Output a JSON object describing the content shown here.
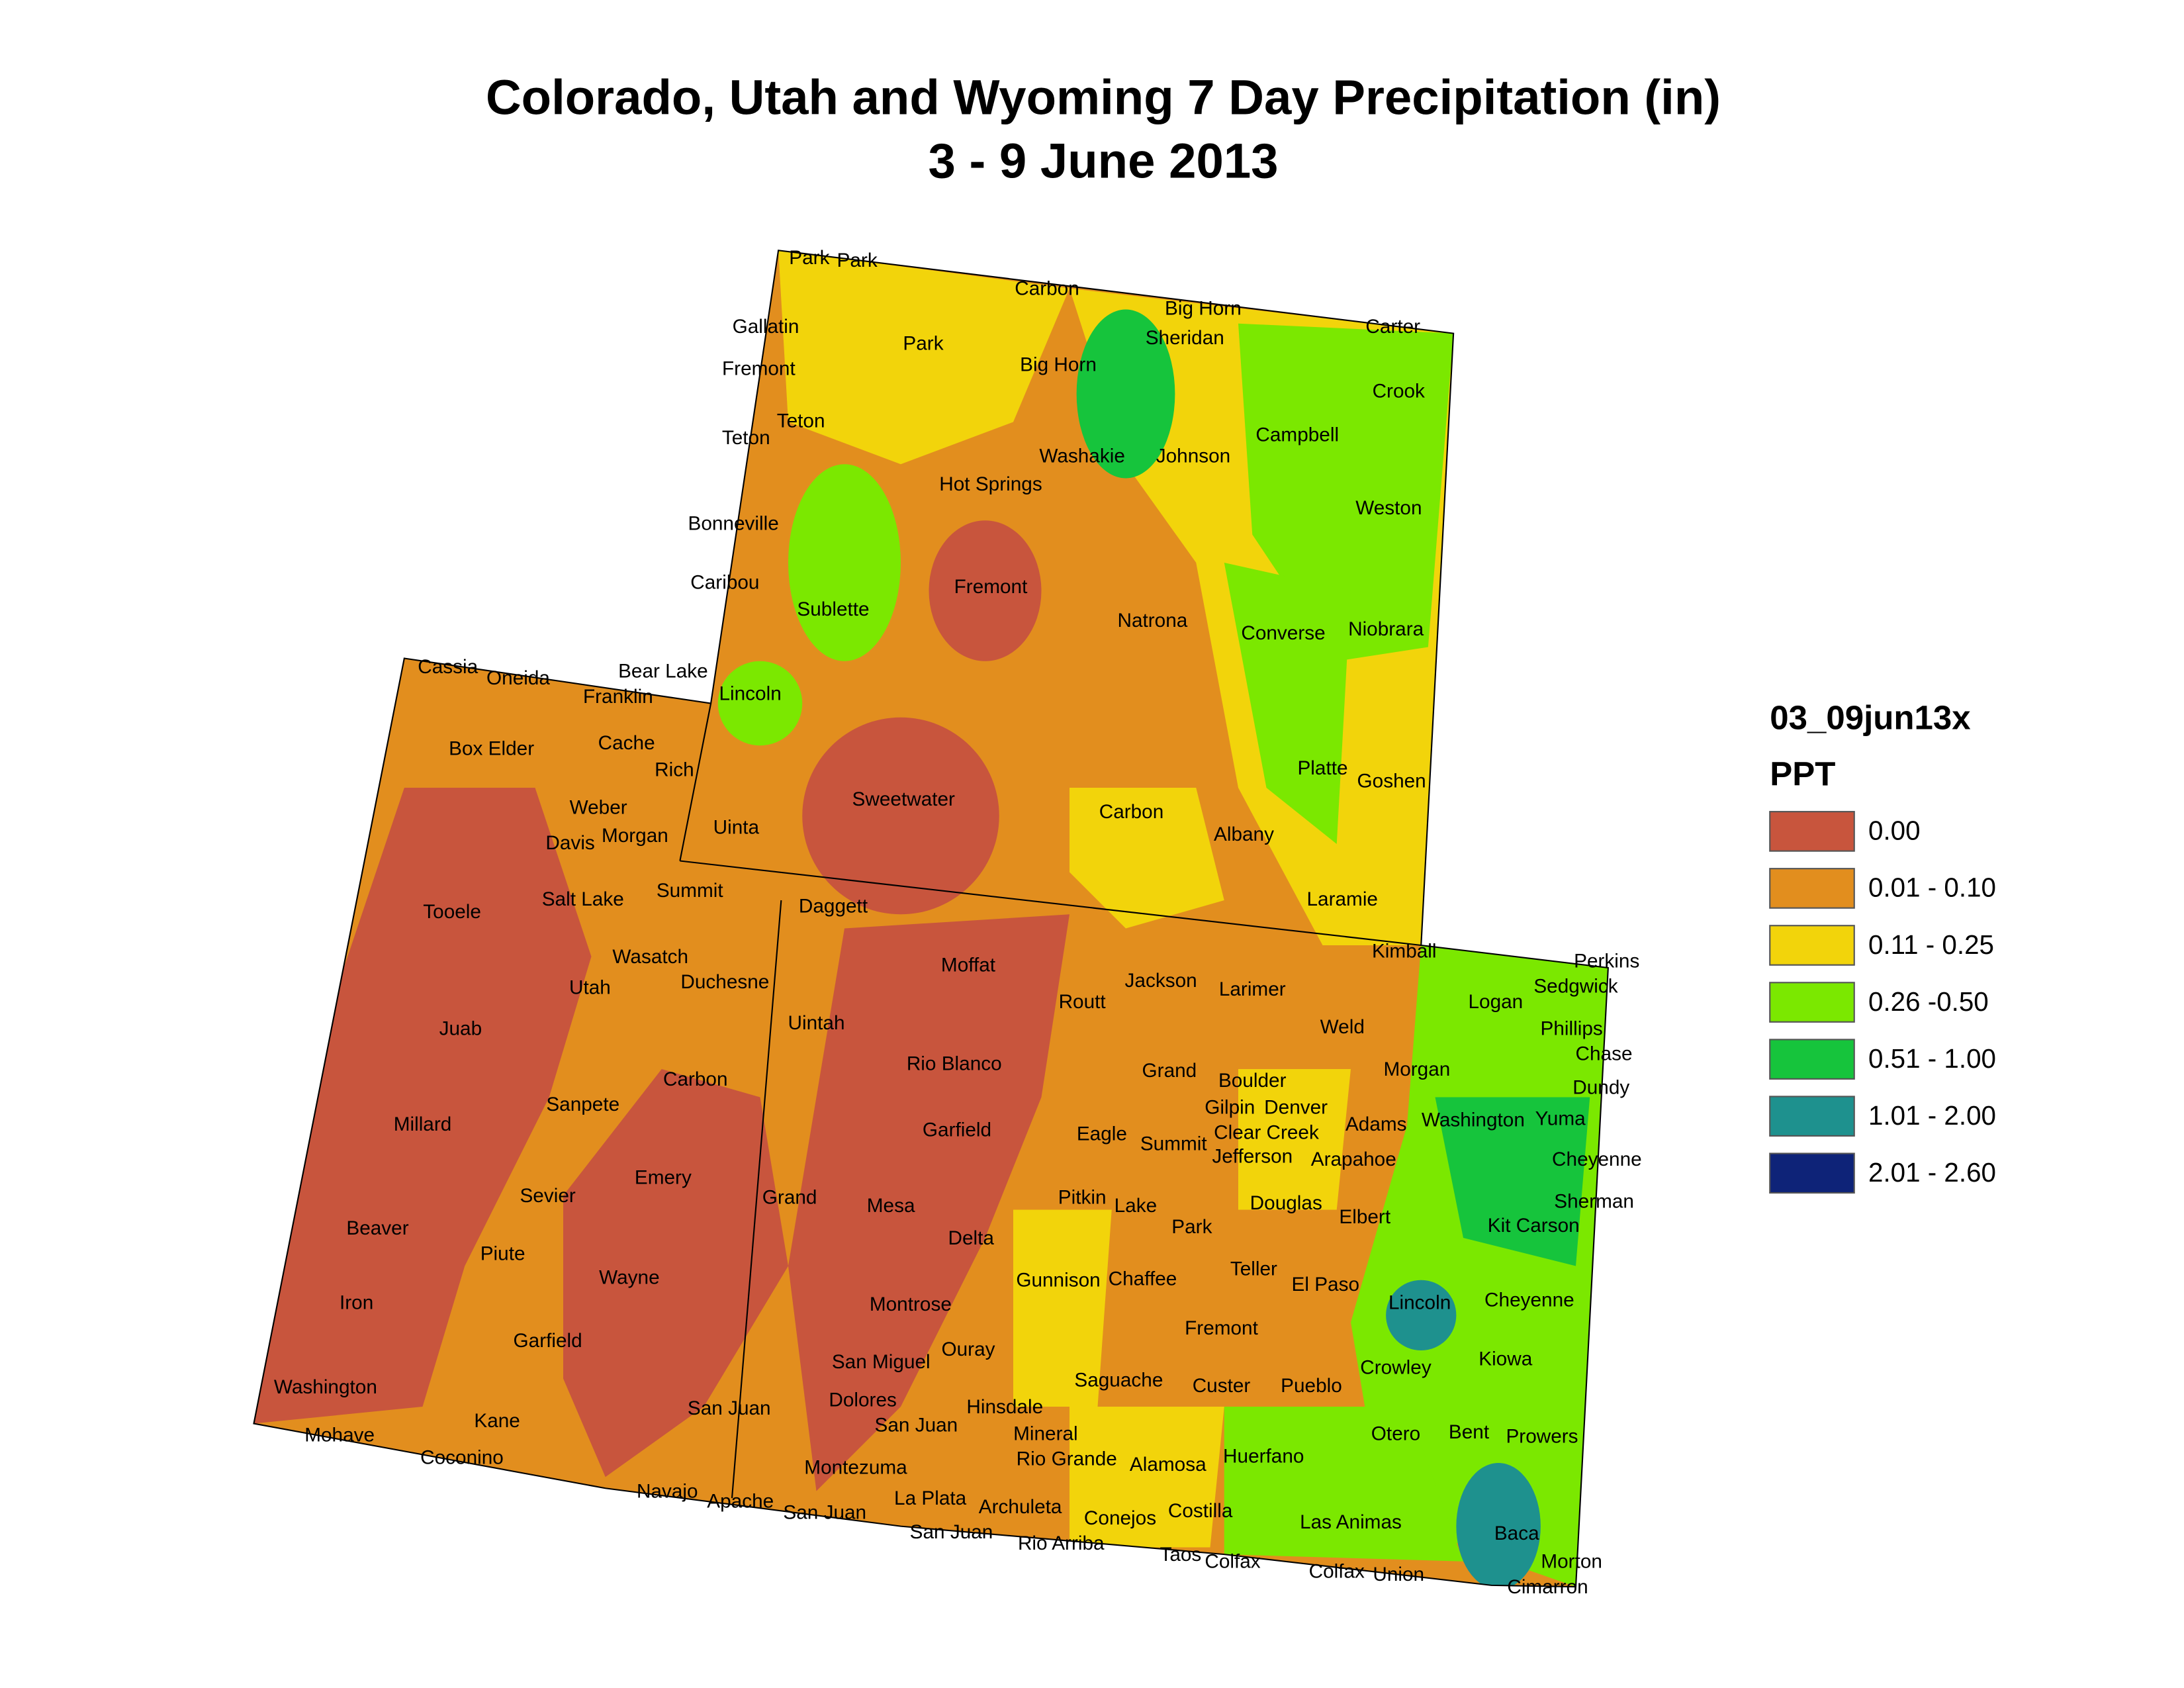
{
  "header": {
    "title": "Colorado, Utah and Wyoming 7 Day Precipitation (in)",
    "subtitle": "3 - 9 June 2013"
  },
  "legend": {
    "title": "03_09jun13x",
    "subtitle": "PPT",
    "items": [
      {
        "label": "0.00",
        "color": "#c8553d"
      },
      {
        "label": "0.01 - 0.10",
        "color": "#e28e1e"
      },
      {
        "label": "0.11 - 0.25",
        "color": "#f2d40b"
      },
      {
        "label": "0.26 -0.50",
        "color": "#7be800"
      },
      {
        "label": "0.51 - 1.00",
        "color": "#16c43c"
      },
      {
        "label": "1.01 - 2.00",
        "color": "#1e918e"
      },
      {
        "label": "2.01 - 2.60",
        "color": "#0e2378"
      }
    ]
  },
  "labels": [
    "Park",
    "Park",
    "Carbon",
    "Big Horn",
    "Gallatin",
    "Sheridan",
    "Carter",
    "Fremont",
    "Park",
    "Big Horn",
    "Crook",
    "Teton",
    "Teton",
    "Washakie",
    "Johnson",
    "Campbell",
    "Hot Springs",
    "Weston",
    "Bonneville",
    "Caribou",
    "Fremont",
    "Sublette",
    "Natrona",
    "Converse",
    "Niobrara",
    "Cassia",
    "Oneida",
    "Bear Lake",
    "Franklin",
    "Lincoln",
    "Box Elder",
    "Cache",
    "Rich",
    "Platte",
    "Goshen",
    "Weber",
    "Sweetwater",
    "Carbon",
    "Davis",
    "Morgan",
    "Uinta",
    "Albany",
    "Summit",
    "Salt Lake",
    "Tooele",
    "Daggett",
    "Laramie",
    "Kimball",
    "Perkins",
    "Sedgwick",
    "Wasatch",
    "Moffat",
    "Jackson",
    "Larimer",
    "Logan",
    "Duchesne",
    "Utah",
    "Routt",
    "Phillips",
    "Juab",
    "Uintah",
    "Weld",
    "Chase",
    "Morgan",
    "Grand",
    "Rio Blanco",
    "Boulder",
    "Dundy",
    "Carbon",
    "Gilpin",
    "Denver",
    "Sanpete",
    "Adams",
    "Washington",
    "Yuma",
    "Millard",
    "Garfield",
    "Clear Creek",
    "Eagle",
    "Summit",
    "Jefferson",
    "Arapahoe",
    "Cheyenne",
    "Emery",
    "Grand",
    "Sevier",
    "Pitkin",
    "Lake",
    "Mesa",
    "Douglas",
    "Sherman",
    "Elbert",
    "Kit Carson",
    "Beaver",
    "Park",
    "Delta",
    "Piute",
    "Teller",
    "Wayne",
    "Gunnison",
    "Chaffee",
    "El Paso",
    "Iron",
    "Lincoln",
    "Cheyenne",
    "Montrose",
    "Fremont",
    "Garfield",
    "Ouray",
    "San Miguel",
    "Kiowa",
    "Crowley",
    "Saguache",
    "Custer",
    "Pueblo",
    "Washington",
    "Dolores",
    "Hinsdale",
    "San Juan",
    "Kane",
    "San Juan",
    "Mineral",
    "Otero",
    "Bent",
    "Prowers",
    "Mohave",
    "Coconino",
    "Rio Grande",
    "Huerfano",
    "Alamosa",
    "Montezuma",
    "Navajo",
    "Apache",
    "La Plata",
    "San Juan",
    "Archuleta",
    "Costilla",
    "Conejos",
    "Las Animas",
    "Baca",
    "San Juan",
    "Rio Arriba",
    "Taos",
    "Colfax",
    "Colfax",
    "Union",
    "Morton",
    "Cimarron"
  ]
}
